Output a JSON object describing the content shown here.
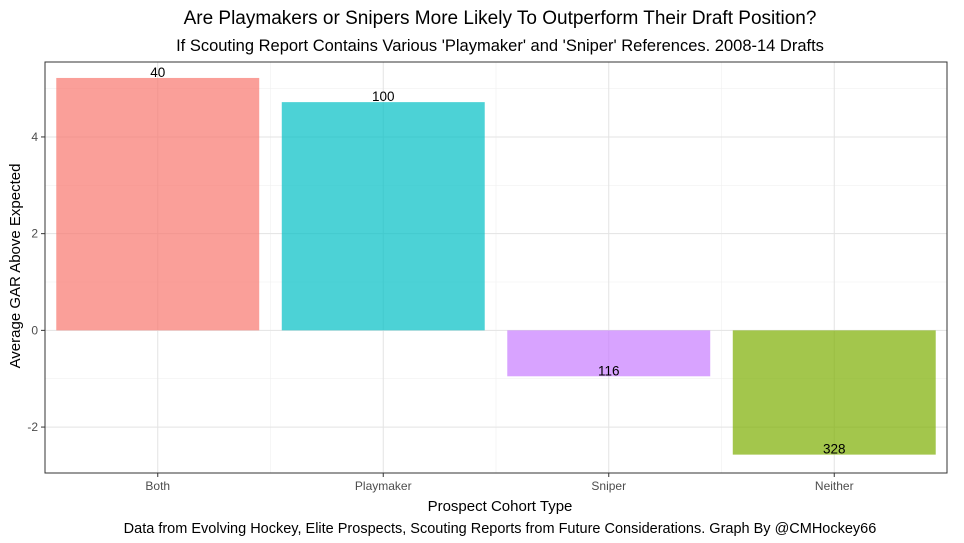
{
  "chart_data": {
    "type": "bar",
    "title": "Are Playmakers or Snipers More Likely To Outperform Their Draft Position?",
    "subtitle": "If Scouting Report Contains Various 'Playmaker' and 'Sniper' References. 2008-14 Drafts",
    "xlabel": "Prospect Cohort Type",
    "ylabel": "Average GAR Above Expected",
    "caption": "Data from Evolving Hockey, Elite Prospects, Scouting Reports from Future Considerations. Graph By @CMHockey66",
    "categories": [
      "Both",
      "Playmaker",
      "Sniper",
      "Neither"
    ],
    "values": [
      5.22,
      4.72,
      -0.95,
      -2.57
    ],
    "data_labels": [
      "40",
      "100",
      "116",
      "328"
    ],
    "colors": [
      "#F8766D",
      "#00BFC4",
      "#C77CFF",
      "#7CAE00"
    ],
    "bar_opacity": 0.7,
    "ylim": [
      -2.95,
      5.55
    ],
    "yticks": [
      -2,
      0,
      2,
      4
    ],
    "ytick_labels": [
      "-2",
      "0",
      "2",
      "4"
    ],
    "grid": true,
    "legend": "none"
  }
}
